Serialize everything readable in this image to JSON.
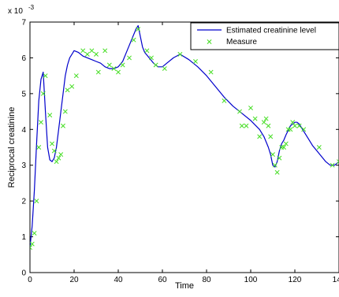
{
  "chart_data": {
    "type": "line",
    "title": "",
    "xlabel": "Time",
    "ylabel": "Reciprocal creatinine",
    "xlim": [
      0,
      140
    ],
    "ylim": [
      0,
      7
    ],
    "y_scale_label": "x 10",
    "y_scale_exponent": "-3",
    "xticks": [
      "0",
      "20",
      "40",
      "60",
      "80",
      "100",
      "120",
      "140"
    ],
    "yticks": [
      "0",
      "1",
      "2",
      "3",
      "4",
      "5",
      "6",
      "7"
    ],
    "grid": false,
    "legend_position": "top-right",
    "colors": {
      "line": "#0000cc",
      "marker": "#44dd22"
    },
    "series": [
      {
        "name": "Estimated creatinine level",
        "style": "line",
        "x": [
          0,
          1,
          2,
          3,
          4,
          5,
          6,
          7,
          8,
          9,
          10,
          11,
          12,
          13,
          14,
          15,
          16,
          17,
          18,
          19,
          20,
          22,
          24,
          26,
          28,
          30,
          32,
          34,
          36,
          38,
          40,
          42,
          44,
          46,
          48,
          49,
          50,
          51,
          52,
          54,
          56,
          58,
          60,
          62,
          65,
          68,
          72,
          76,
          80,
          84,
          88,
          92,
          96,
          100,
          104,
          106,
          108,
          109,
          110,
          111,
          112,
          113,
          114,
          115,
          116,
          118,
          120,
          121,
          122,
          124,
          126,
          128,
          130,
          132,
          134,
          136,
          138,
          140
        ],
        "y": [
          0.7,
          1.3,
          2.3,
          3.6,
          4.8,
          5.4,
          5.6,
          4.5,
          3.5,
          3.15,
          3.1,
          3.2,
          3.5,
          4.0,
          4.5,
          5.0,
          5.5,
          5.8,
          6.0,
          6.1,
          6.2,
          6.15,
          6.05,
          6.0,
          5.95,
          5.9,
          5.85,
          5.75,
          5.7,
          5.7,
          5.75,
          5.9,
          6.2,
          6.5,
          6.8,
          6.9,
          6.6,
          6.3,
          6.15,
          6.0,
          5.85,
          5.75,
          5.75,
          5.85,
          6.0,
          6.1,
          5.95,
          5.75,
          5.5,
          5.2,
          4.9,
          4.65,
          4.45,
          4.25,
          4.0,
          3.8,
          3.5,
          3.3,
          3.0,
          2.95,
          3.1,
          3.4,
          3.6,
          3.7,
          3.85,
          4.1,
          4.2,
          4.2,
          4.15,
          3.95,
          3.75,
          3.55,
          3.4,
          3.25,
          3.1,
          3.0,
          3.0,
          3.1
        ]
      },
      {
        "name": "Measure",
        "style": "marker",
        "x": [
          0,
          1,
          2,
          3,
          4,
          5,
          6,
          7,
          9,
          10,
          11,
          12,
          13,
          14,
          15,
          16,
          17,
          19,
          21,
          24,
          26,
          28,
          30,
          31,
          34,
          36,
          38,
          40,
          42,
          45,
          47,
          49,
          53,
          55,
          57,
          61,
          68,
          75,
          82,
          88,
          95,
          96,
          98,
          100,
          102,
          104,
          106,
          107,
          108,
          109,
          110,
          111,
          112,
          113,
          114,
          115,
          116,
          117,
          118,
          119,
          120,
          122,
          124,
          131,
          137,
          140
        ],
        "y": [
          0.7,
          0.8,
          1.1,
          2.0,
          3.5,
          4.2,
          5.0,
          5.5,
          4.4,
          3.6,
          3.4,
          3.1,
          3.2,
          3.3,
          4.1,
          4.5,
          5.1,
          5.2,
          5.5,
          6.2,
          6.1,
          6.2,
          6.1,
          5.6,
          6.2,
          5.8,
          5.7,
          5.6,
          5.8,
          6.0,
          6.5,
          6.8,
          6.2,
          6.0,
          5.8,
          5.7,
          6.1,
          5.9,
          5.6,
          4.8,
          4.5,
          4.1,
          4.1,
          4.6,
          4.3,
          3.8,
          4.2,
          4.3,
          4.1,
          3.8,
          3.3,
          3.0,
          2.8,
          3.2,
          3.5,
          3.5,
          3.6,
          4.0,
          4.0,
          4.2,
          4.1,
          4.1,
          4.0,
          3.5,
          3.0,
          3.1
        ]
      }
    ]
  }
}
